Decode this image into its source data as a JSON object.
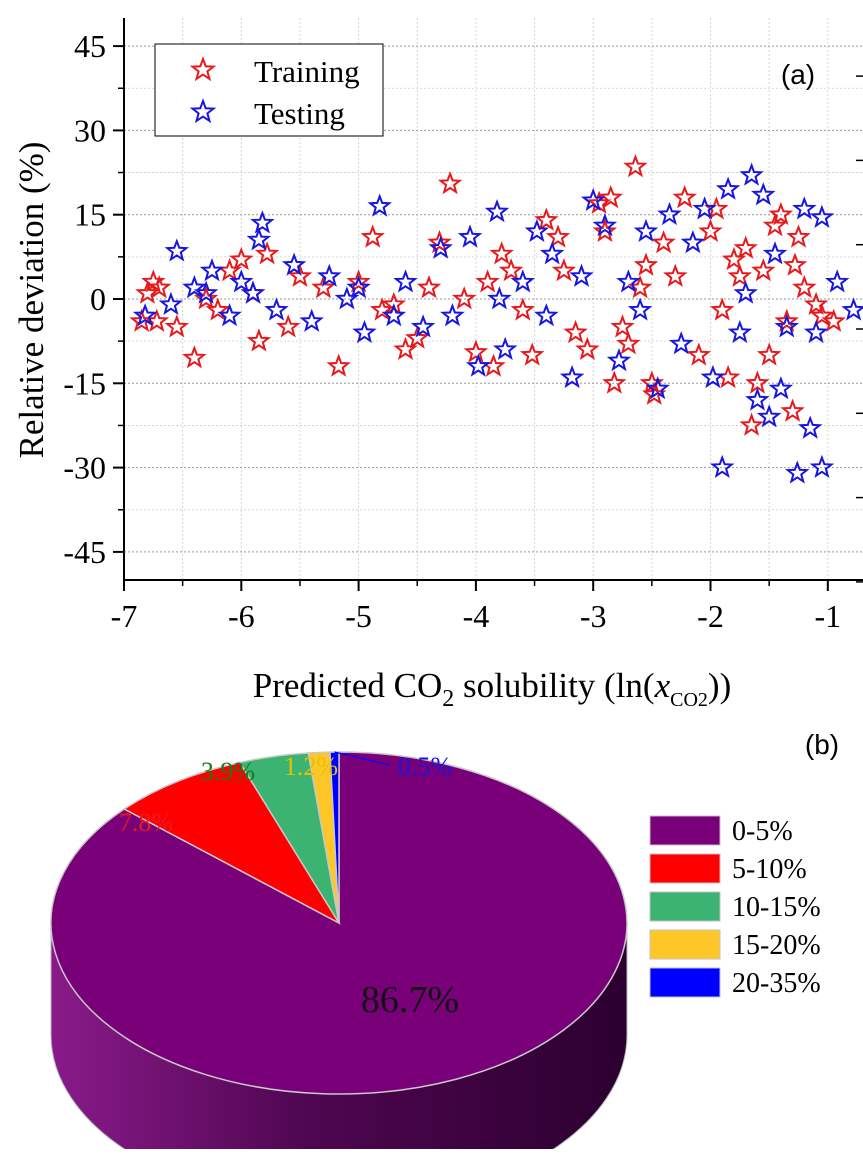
{
  "chart_data": [
    {
      "type": "scatter",
      "panel_label": "(a)",
      "xlabel": {
        "main": "Predicted CO",
        "sub": "2",
        "tail1": " solubility (ln(",
        "var": "x",
        "var_sub": "CO2",
        "tail2": "))"
      },
      "ylabel": "Relative deviation (%)",
      "xlim": [
        -7,
        -1
      ],
      "ylim": [
        -50,
        50
      ],
      "x_ticks": [
        -7,
        -6,
        -5,
        -4,
        -3,
        -2,
        -1
      ],
      "x_tick_labels": [
        "-7",
        "-6",
        "-5",
        "-4",
        "-3",
        "-2",
        "-1"
      ],
      "y_ticks": [
        45,
        30,
        15,
        0,
        -15,
        -30,
        -45
      ],
      "y_tick_labels": [
        "45",
        "30",
        "15",
        "0",
        "-15",
        "-30",
        "-45"
      ],
      "grid": true,
      "legend_position": "top-left",
      "series": [
        {
          "name": "Training",
          "color": "#e8191c",
          "marker": "star",
          "points": [
            [
              -6.85,
              -4
            ],
            [
              -6.8,
              1
            ],
            [
              -6.75,
              3
            ],
            [
              -6.7,
              2
            ],
            [
              -6.72,
              -4
            ],
            [
              -6.55,
              -5
            ],
            [
              -6.4,
              -10.5
            ],
            [
              -6.3,
              0
            ],
            [
              -6.1,
              5
            ],
            [
              -6.0,
              7
            ],
            [
              -5.85,
              -7.5
            ],
            [
              -5.78,
              8
            ],
            [
              -5.6,
              -5
            ],
            [
              -5.5,
              4
            ],
            [
              -5.3,
              2
            ],
            [
              -5.17,
              -12
            ],
            [
              -5.0,
              3
            ],
            [
              -4.88,
              11
            ],
            [
              -4.8,
              -2
            ],
            [
              -4.6,
              -9
            ],
            [
              -4.5,
              -7
            ],
            [
              -4.4,
              2
            ],
            [
              -4.31,
              10
            ],
            [
              -4.22,
              20.5
            ],
            [
              -4.1,
              0
            ],
            [
              -4.0,
              -9.5
            ],
            [
              -3.9,
              3
            ],
            [
              -3.85,
              -12
            ],
            [
              -3.78,
              8
            ],
            [
              -3.7,
              5
            ],
            [
              -3.52,
              -10
            ],
            [
              -3.4,
              14
            ],
            [
              -3.3,
              11
            ],
            [
              -3.25,
              5
            ],
            [
              -3.15,
              -6
            ],
            [
              -3.05,
              -9
            ],
            [
              -2.95,
              17
            ],
            [
              -2.9,
              12
            ],
            [
              -2.85,
              18
            ],
            [
              -2.82,
              -15
            ],
            [
              -2.7,
              -8
            ],
            [
              -2.64,
              23.5
            ],
            [
              -2.55,
              6
            ],
            [
              -2.5,
              -15
            ],
            [
              -2.48,
              -17
            ],
            [
              -2.4,
              10
            ],
            [
              -2.3,
              4
            ],
            [
              -2.22,
              18
            ],
            [
              -2.1,
              -10
            ],
            [
              -2.0,
              12
            ],
            [
              -1.95,
              16
            ],
            [
              -1.9,
              -2
            ],
            [
              -1.85,
              -14
            ],
            [
              -1.75,
              4
            ],
            [
              -1.7,
              9
            ],
            [
              -1.65,
              -22.5
            ],
            [
              -1.6,
              -15
            ],
            [
              -1.55,
              5
            ],
            [
              -1.5,
              -10
            ],
            [
              -1.45,
              13
            ],
            [
              -1.4,
              15
            ],
            [
              -1.35,
              -4
            ],
            [
              -1.3,
              -20
            ],
            [
              -1.28,
              6
            ],
            [
              -1.25,
              11
            ],
            [
              -1.2,
              2
            ],
            [
              -1.1,
              -1
            ],
            [
              -1.05,
              -3
            ],
            [
              -0.95,
              -4
            ],
            [
              -2.6,
              2
            ],
            [
              -3.6,
              -2
            ],
            [
              -4.7,
              -1
            ],
            [
              -5.9,
              1
            ],
            [
              -6.2,
              -2
            ],
            [
              -2.75,
              -5
            ],
            [
              -1.8,
              7
            ]
          ]
        },
        {
          "name": "Testing",
          "color": "#1616e0",
          "marker": "star",
          "points": [
            [
              -6.82,
              -3
            ],
            [
              -6.6,
              -1
            ],
            [
              -6.55,
              8.5
            ],
            [
              -6.4,
              2
            ],
            [
              -6.25,
              5
            ],
            [
              -6.1,
              -3
            ],
            [
              -6.0,
              3
            ],
            [
              -5.9,
              1
            ],
            [
              -5.85,
              10.5
            ],
            [
              -5.82,
              13.5
            ],
            [
              -5.7,
              -2
            ],
            [
              -5.55,
              6
            ],
            [
              -5.4,
              -4
            ],
            [
              -5.25,
              4
            ],
            [
              -5.1,
              0
            ],
            [
              -4.95,
              -6
            ],
            [
              -4.82,
              16.5
            ],
            [
              -4.7,
              -3
            ],
            [
              -4.6,
              3
            ],
            [
              -4.45,
              -5
            ],
            [
              -4.3,
              9
            ],
            [
              -4.2,
              -3
            ],
            [
              -4.05,
              11
            ],
            [
              -3.98,
              -12
            ],
            [
              -3.82,
              15.5
            ],
            [
              -3.75,
              -9
            ],
            [
              -3.6,
              3
            ],
            [
              -3.48,
              12
            ],
            [
              -3.4,
              -3
            ],
            [
              -3.35,
              8
            ],
            [
              -3.18,
              -14
            ],
            [
              -3.1,
              4
            ],
            [
              -3.0,
              17.5
            ],
            [
              -2.9,
              13
            ],
            [
              -2.78,
              -11
            ],
            [
              -2.7,
              3
            ],
            [
              -2.55,
              12
            ],
            [
              -2.45,
              -16
            ],
            [
              -2.35,
              15
            ],
            [
              -2.25,
              -8
            ],
            [
              -2.15,
              10
            ],
            [
              -2.05,
              16
            ],
            [
              -1.98,
              -14
            ],
            [
              -1.9,
              -30
            ],
            [
              -1.85,
              19.5
            ],
            [
              -1.75,
              -6
            ],
            [
              -1.65,
              22
            ],
            [
              -1.6,
              -18
            ],
            [
              -1.55,
              18.5
            ],
            [
              -1.5,
              -21
            ],
            [
              -1.45,
              8
            ],
            [
              -1.4,
              -16
            ],
            [
              -1.35,
              -5
            ],
            [
              -1.26,
              -31
            ],
            [
              -1.2,
              16
            ],
            [
              -1.15,
              -23
            ],
            [
              -1.05,
              -30
            ],
            [
              -1.05,
              14.5
            ],
            [
              -0.92,
              3
            ],
            [
              -0.78,
              -2
            ],
            [
              -1.1,
              -6
            ],
            [
              -3.8,
              0
            ],
            [
              -5.0,
              2
            ],
            [
              -6.3,
              1
            ],
            [
              -2.6,
              -2
            ],
            [
              -1.7,
              1
            ]
          ]
        }
      ]
    },
    {
      "type": "pie",
      "panel_label": "(b)",
      "slices": [
        {
          "label": "0-5%",
          "value": 86.7,
          "value_label": "86.7%",
          "color": "#7a007a"
        },
        {
          "label": "5-10%",
          "value": 7.8,
          "value_label": "7.8%",
          "color": "#ff0000"
        },
        {
          "label": "10-15%",
          "value": 3.9,
          "value_label": "3.9%",
          "color": "#3cb371"
        },
        {
          "label": "15-20%",
          "value": 1.2,
          "value_label": "1.2%",
          "color": "#ffc627"
        },
        {
          "label": "20-35%",
          "value": 0.5,
          "value_label": "0.5%",
          "color": "#0000ff"
        }
      ],
      "label_colors": [
        "#111111",
        "#e8191c",
        "#1a7a1a",
        "#e6c200",
        "#1616e0"
      ],
      "legend_position": "right",
      "style": "3d"
    }
  ]
}
